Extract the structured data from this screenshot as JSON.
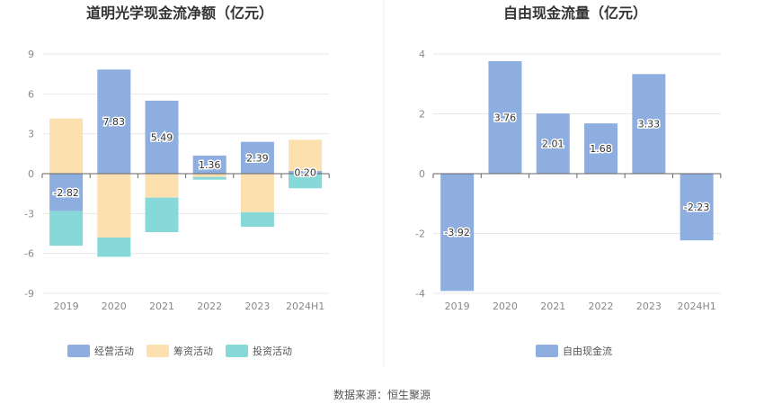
{
  "source": "数据来源：恒生聚源",
  "colors": {
    "operating": "#8eaedf",
    "financing": "#fde0b0",
    "investing": "#87d8d9",
    "free_cash_flow": "#8eaedf",
    "grid": "#e8e8e8",
    "axis": "#666666"
  },
  "chart_data": [
    {
      "type": "bar",
      "stacked": true,
      "title": "道明光学现金流净额（亿元）",
      "categories": [
        "2019",
        "2020",
        "2021",
        "2022",
        "2023",
        "2024H1"
      ],
      "ylim": [
        -9,
        9
      ],
      "yticks": [
        9,
        6,
        3,
        0,
        -3,
        -6,
        -9
      ],
      "grid": true,
      "legend_position": "bottom-center",
      "series": [
        {
          "name": "经营活动",
          "color_key": "operating",
          "values": [
            -2.82,
            7.83,
            5.49,
            1.36,
            2.39,
            0.2
          ],
          "labels": [
            "-2.82",
            "7.83",
            "5.49",
            "1.36",
            "2.39",
            "0.20"
          ]
        },
        {
          "name": "筹资活动",
          "color_key": "financing",
          "values": [
            4.15,
            -4.8,
            -1.8,
            -0.25,
            -2.9,
            2.35
          ]
        },
        {
          "name": "投资活动",
          "color_key": "investing",
          "values": [
            -2.6,
            -1.45,
            -2.6,
            -0.2,
            -1.1,
            -1.1
          ]
        }
      ]
    },
    {
      "type": "bar",
      "title": "自由现金流量（亿元）",
      "categories": [
        "2019",
        "2020",
        "2021",
        "2022",
        "2023",
        "2024H1"
      ],
      "ylim": [
        -4,
        4
      ],
      "yticks": [
        4,
        2,
        0,
        -2,
        -4
      ],
      "grid": true,
      "legend_position": "bottom-center",
      "series": [
        {
          "name": "自由现金流",
          "color_key": "free_cash_flow",
          "values": [
            -3.92,
            3.76,
            2.01,
            1.68,
            3.33,
            -2.23
          ],
          "labels": [
            "-3.92",
            "3.76",
            "2.01",
            "1.68",
            "3.33",
            "-2.23"
          ]
        }
      ]
    }
  ]
}
